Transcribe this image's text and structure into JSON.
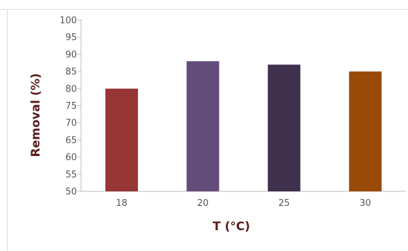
{
  "chart_data": {
    "type": "bar",
    "title": "",
    "xlabel": "T (°C)",
    "ylabel": "Removal (%)",
    "categories": [
      "18",
      "20",
      "25",
      "30"
    ],
    "values": [
      80,
      88,
      87,
      85
    ],
    "colors": [
      "#983535",
      "#634c7a",
      "#40314f",
      "#9a4a08"
    ],
    "ylim": [
      50,
      100
    ],
    "yticks": [
      50,
      55,
      60,
      65,
      70,
      75,
      80,
      85,
      90,
      95,
      100
    ],
    "grid": false,
    "legend": "none"
  }
}
